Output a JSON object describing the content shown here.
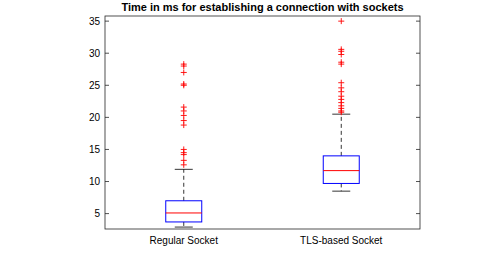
{
  "chart_data": {
    "type": "box",
    "title": "Time in ms for establishing a connection with sockets",
    "categories": [
      "Regular Socket",
      "TLS-based Socket"
    ],
    "boxes": [
      {
        "min": 2.9,
        "q1": 3.7,
        "median": 5.1,
        "q3": 7.0,
        "max": 11.9,
        "outliers": [
          12.6,
          13.3,
          14.2,
          14.5,
          15.0,
          18.8,
          19.5,
          20.3,
          21.0,
          21.6,
          25.0,
          25.2,
          27.0,
          28.0,
          28.3
        ]
      },
      {
        "min": 8.5,
        "q1": 9.7,
        "median": 11.7,
        "q3": 14.0,
        "max": 20.5,
        "outliers": [
          20.8,
          21.0,
          21.4,
          21.8,
          22.3,
          22.8,
          23.3,
          24.0,
          24.6,
          25.4,
          28.3,
          28.6,
          29.8,
          30.3,
          30.6,
          35.0
        ]
      }
    ],
    "color": "#0000ff",
    "ylim": [
      2.6,
      35.8
    ],
    "yticks": [
      5,
      10,
      15,
      20,
      25,
      30,
      35
    ],
    "grid": false
  }
}
